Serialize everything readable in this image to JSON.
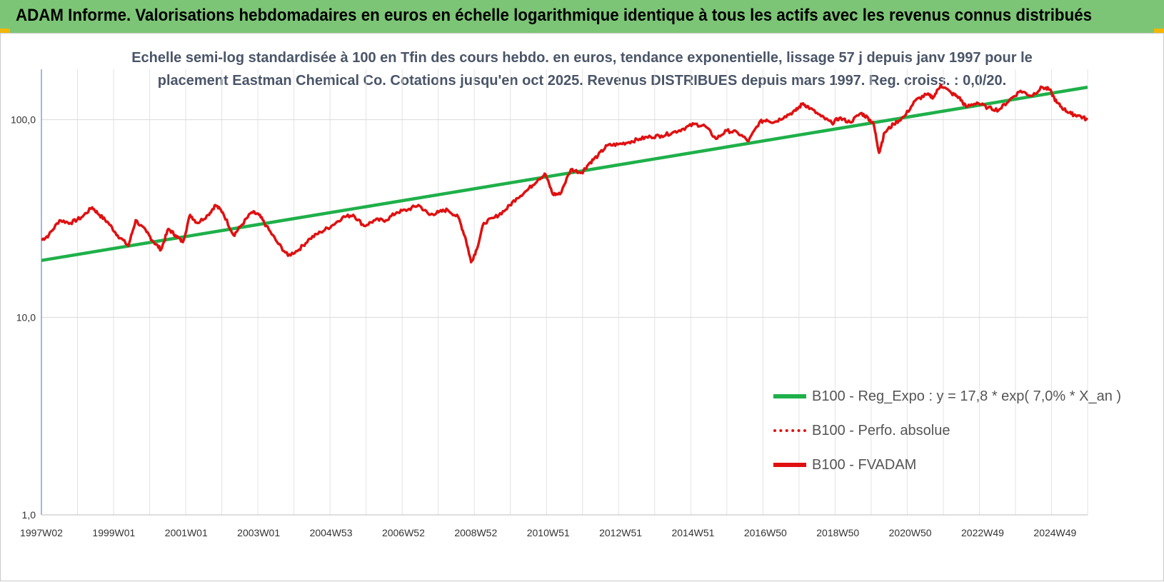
{
  "banner": {
    "title": "ADAM Informe. Valorisations hebdomadaires en euros en échelle logarithmique identique à tous les actifs avec les revenus connus distribués"
  },
  "chart_data": {
    "type": "line",
    "title_line1": "Echelle semi-log standardisée à 100 en Tfin des cours hebdo. en euros, tendance exponentielle, lissage 57 j depuis janv 1997 pour le",
    "title_line2": "placement Eastman Chemical Co. Cotations jusqu'en oct 2025. Revenus DISTRIBUES depuis mars 1997. Reg. croiss. : 0,0/20.",
    "y_scale": "log",
    "ylim": [
      1,
      180
    ],
    "y_ticks": [
      1,
      10,
      100
    ],
    "y_tick_labels": [
      "1,0",
      "10,0",
      "100,0"
    ],
    "xlim": [
      1997.0,
      2025.85
    ],
    "x_tick_labels": [
      "1997W02",
      "1999W01",
      "2001W01",
      "2003W01",
      "2004W53",
      "2006W52",
      "2008W52",
      "2010W51",
      "2012W51",
      "2014W51",
      "2016W50",
      "2018W50",
      "2020W50",
      "2022W49",
      "2024W49"
    ],
    "grid": true,
    "legend_position": "bottom-right",
    "series": [
      {
        "name": "B100 - Reg_Expo : y = 17,8 * exp( 7,0% *  X_an )",
        "color": "#1fb04a",
        "style": "solid",
        "x": [
          1997.0,
          2025.85
        ],
        "y": [
          19.4,
          146
        ]
      },
      {
        "name": "B100 - Perfo. absolue",
        "color": "#e01010",
        "style": "dotted",
        "x": [],
        "y": []
      },
      {
        "name": "B100 - FVADAM",
        "color": "#e01010",
        "style": "solid",
        "x": [
          1997.0,
          1997.2,
          1997.5,
          1997.8,
          1998.1,
          1998.4,
          1998.6,
          1998.85,
          1999.1,
          1999.4,
          1999.6,
          1999.9,
          2000.1,
          2000.3,
          2000.5,
          2000.7,
          2000.9,
          2001.1,
          2001.3,
          2001.6,
          2001.8,
          2002.0,
          2002.3,
          2002.5,
          2002.8,
          2003.0,
          2003.2,
          2003.5,
          2003.8,
          2004.1,
          2004.4,
          2004.7,
          2005.0,
          2005.3,
          2005.6,
          2005.9,
          2006.2,
          2006.5,
          2006.8,
          2007.1,
          2007.4,
          2007.7,
          2007.95,
          2008.2,
          2008.5,
          2008.7,
          2008.85,
          2009.0,
          2009.2,
          2009.5,
          2009.8,
          2010.1,
          2010.4,
          2010.7,
          2010.9,
          2011.1,
          2011.3,
          2011.6,
          2011.9,
          2012.1,
          2012.35,
          2012.6,
          2012.9,
          2013.2,
          2013.5,
          2013.8,
          2014.1,
          2014.4,
          2014.7,
          2015.0,
          2015.3,
          2015.6,
          2015.9,
          2016.2,
          2016.5,
          2016.8,
          2017.0,
          2017.2,
          2017.5,
          2017.8,
          2018.0,
          2018.2,
          2018.5,
          2018.8,
          2019.0,
          2019.3,
          2019.6,
          2019.8,
          2019.95,
          2020.1,
          2020.25,
          2020.5,
          2020.8,
          2021.1,
          2021.4,
          2021.6,
          2021.8,
          2022.1,
          2022.3,
          2022.5,
          2022.8,
          2023.1,
          2023.4,
          2023.7,
          2024.0,
          2024.3,
          2024.6,
          2024.8,
          2025.0,
          2025.2,
          2025.4,
          2025.6,
          2025.85
        ],
        "y": [
          24.6,
          26,
          31,
          30,
          32,
          36,
          33,
          30,
          26,
          23,
          31,
          27,
          24,
          22,
          28,
          26,
          24,
          33,
          30,
          33,
          37,
          34,
          26,
          29,
          34,
          33,
          29,
          24,
          20.5,
          22,
          25,
          27,
          29,
          32,
          33,
          29,
          31,
          31,
          34,
          35,
          37,
          33,
          34,
          35,
          32,
          25,
          19,
          22,
          30,
          32,
          35,
          40,
          44,
          50,
          53,
          42,
          42,
          56,
          54,
          60,
          66,
          74,
          75,
          77,
          80,
          82,
          83,
          86,
          90,
          95,
          93,
          80,
          88,
          86,
          78,
          97,
          100,
          97,
          104,
          111,
          121,
          114,
          104,
          96,
          102,
          97,
          108,
          102,
          95,
          68,
          86,
          95,
          104,
          125,
          134,
          130,
          150,
          136,
          130,
          116,
          122,
          115,
          112,
          126,
          140,
          132,
          146,
          142,
          122,
          113,
          107,
          105,
          100
        ]
      }
    ]
  }
}
